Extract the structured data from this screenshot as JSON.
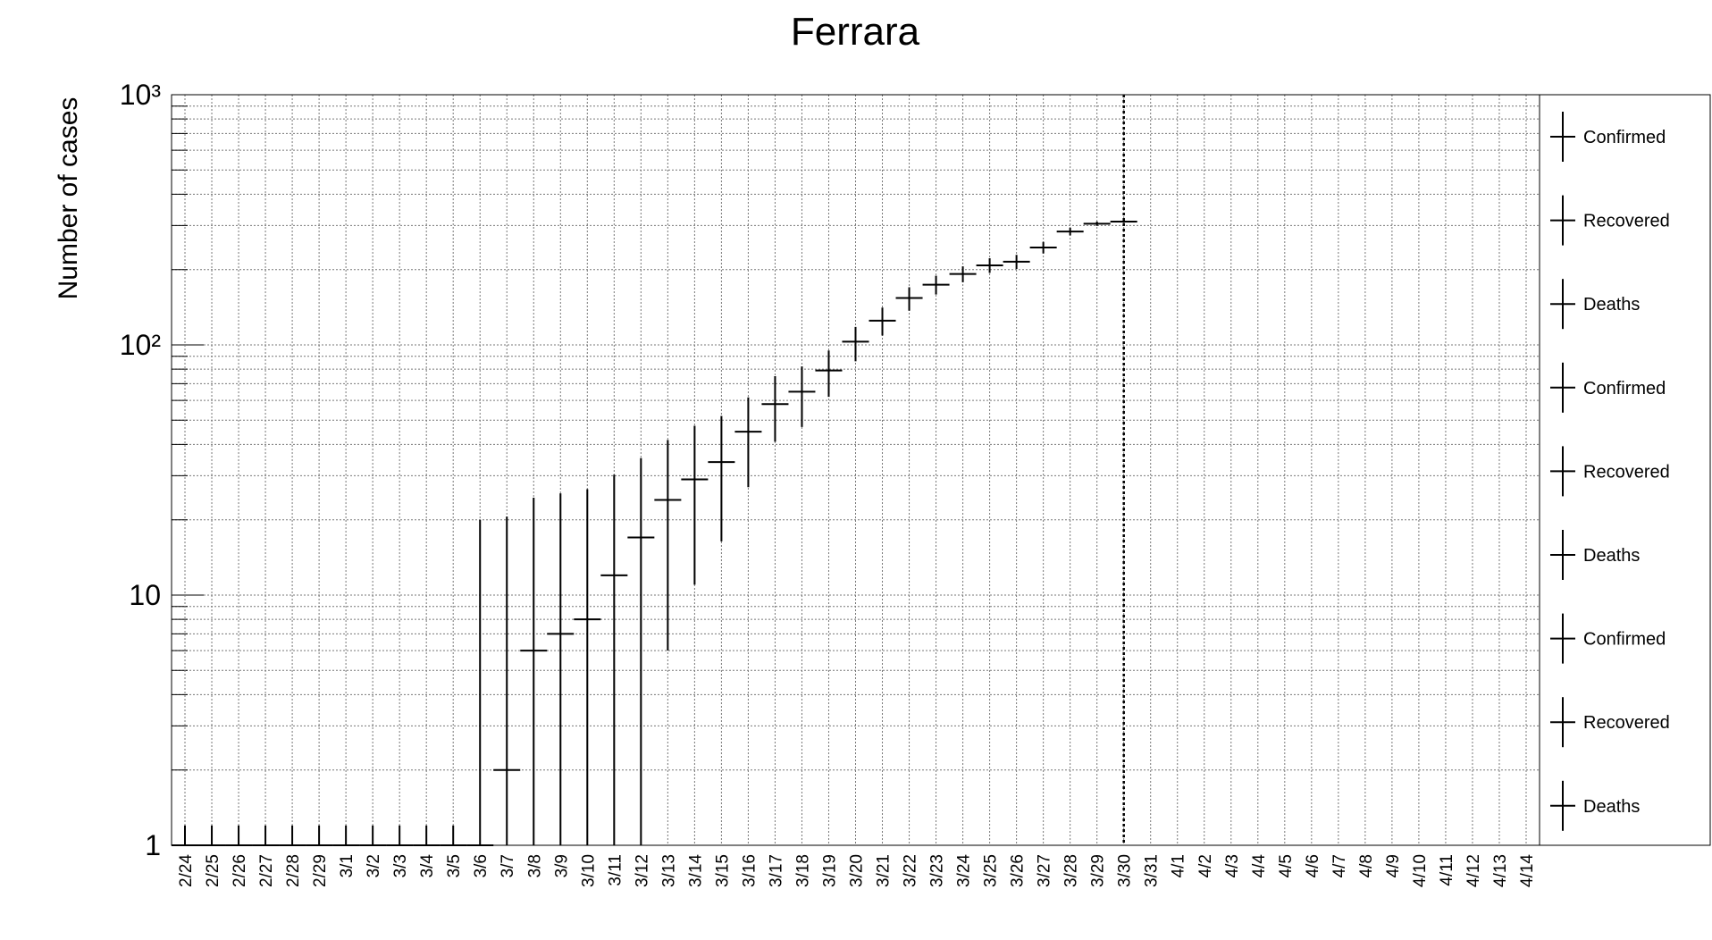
{
  "chart_data": {
    "type": "errorbar",
    "title": "Ferrara",
    "y_label": "Number of cases",
    "log_y": true,
    "grid": true,
    "color": "#000000",
    "categories": [
      "2/24",
      "2/25",
      "2/26",
      "2/27",
      "2/28",
      "2/29",
      "3/1",
      "3/2",
      "3/3",
      "3/4",
      "3/5",
      "3/6",
      "3/7",
      "3/8",
      "3/9",
      "3/10",
      "3/11",
      "3/12",
      "3/13",
      "3/14",
      "3/15",
      "3/16",
      "3/17",
      "3/18",
      "3/19",
      "3/20",
      "3/21",
      "3/22",
      "3/23",
      "3/24",
      "3/25",
      "3/26",
      "3/27",
      "3/28",
      "3/29",
      "3/30",
      "3/31",
      "4/1",
      "4/2",
      "4/3",
      "4/4",
      "4/5",
      "4/6",
      "4/7",
      "4/8",
      "4/9",
      "4/10",
      "4/11",
      "4/12",
      "4/13",
      "4/14"
    ],
    "values": [
      0,
      0,
      0,
      0,
      0,
      0,
      0,
      0,
      0,
      0,
      0,
      0,
      2,
      6,
      7,
      8,
      12,
      17,
      24,
      29,
      34,
      45,
      58,
      65,
      79,
      103,
      125,
      154,
      174,
      192,
      208,
      215,
      245,
      284,
      305,
      311,
      null,
      null,
      null,
      null,
      null,
      null,
      null,
      null,
      null,
      null,
      null,
      null,
      null,
      null,
      null
    ],
    "err_up": [
      1.2,
      1.2,
      1.2,
      1.2,
      1.2,
      1.2,
      1.2,
      1.2,
      1.2,
      1.2,
      1.2,
      20,
      18.6,
      18.5,
      18.5,
      18.5,
      18.3,
      18.3,
      17.7,
      18.5,
      18,
      16.7,
      17,
      17,
      16,
      15,
      16,
      16,
      15,
      14,
      14,
      14,
      13,
      10,
      6,
      4,
      null,
      null,
      null,
      null,
      null,
      null,
      null,
      null,
      null,
      null,
      null,
      null,
      null,
      null,
      null
    ],
    "err_down": [
      0,
      0,
      0,
      0,
      0,
      0,
      0,
      0,
      0,
      0,
      0,
      0,
      2,
      6,
      7,
      8,
      12,
      17,
      18,
      18,
      17.6,
      18,
      17,
      18,
      17,
      17,
      16,
      17,
      15,
      14,
      14,
      14,
      13,
      10,
      6,
      4,
      null,
      null,
      null,
      null,
      null,
      null,
      null,
      null,
      null,
      null,
      null,
      null,
      null,
      null,
      null
    ],
    "vline": "3/30",
    "ylim": [
      1,
      1000
    ],
    "yticks": [
      1,
      10,
      {
        "value": 100,
        "label": "10²"
      },
      {
        "value": 1000,
        "label": "10³"
      }
    ],
    "yminor": [
      2,
      3,
      4,
      5,
      6,
      7,
      8,
      9,
      20,
      30,
      40,
      50,
      60,
      70,
      80,
      90,
      200,
      300,
      400,
      500,
      600,
      700,
      800,
      900
    ],
    "legend": [
      "Confirmed",
      "Recovered",
      "Deaths",
      "Confirmed",
      "Recovered",
      "Deaths",
      "Confirmed",
      "Recovered",
      "Deaths"
    ]
  }
}
